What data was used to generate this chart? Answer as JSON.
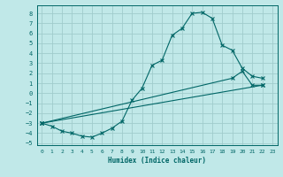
{
  "xlabel": "Humidex (Indice chaleur)",
  "bg_color": "#c0e8e8",
  "grid_color": "#a0cccc",
  "line_color": "#006666",
  "xlim": [
    -0.5,
    23.5
  ],
  "ylim": [
    -5.2,
    8.8
  ],
  "xticks": [
    0,
    1,
    2,
    3,
    4,
    5,
    6,
    7,
    8,
    9,
    10,
    11,
    12,
    13,
    14,
    15,
    16,
    17,
    18,
    19,
    20,
    21,
    22,
    23
  ],
  "yticks": [
    -5,
    -4,
    -3,
    -2,
    -1,
    0,
    1,
    2,
    3,
    4,
    5,
    6,
    7,
    8
  ],
  "curve_x": [
    0,
    1,
    2,
    3,
    4,
    5,
    6,
    7,
    8,
    9,
    10,
    11,
    12,
    13,
    14,
    15,
    16,
    17,
    18,
    19,
    20,
    21,
    22
  ],
  "curve_y": [
    -3.0,
    -3.3,
    -3.8,
    -4.0,
    -4.3,
    -4.4,
    -4.0,
    -3.5,
    -2.8,
    -0.7,
    0.5,
    2.8,
    3.3,
    5.8,
    6.5,
    8.0,
    8.1,
    7.5,
    4.8,
    4.3,
    2.5,
    1.7,
    1.5
  ],
  "line2_x": [
    0,
    19,
    20,
    21,
    22
  ],
  "line2_y": [
    -3.0,
    1.5,
    2.2,
    0.8,
    0.8
  ],
  "line3_x": [
    0,
    22
  ],
  "line3_y": [
    -3.0,
    0.8
  ]
}
